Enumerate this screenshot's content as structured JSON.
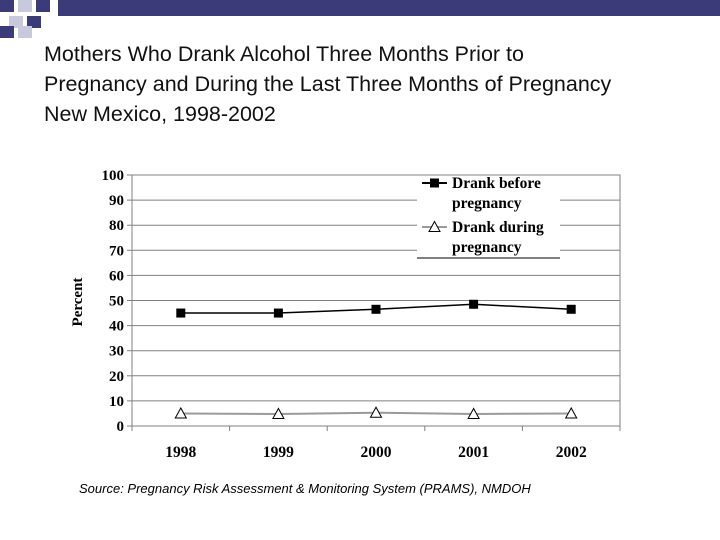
{
  "slide": {
    "title_lines": [
      "Mothers Who Drank Alcohol Three Months Prior to",
      "Pregnancy and During the Last Three Months of Pregnancy",
      "New Mexico, 1998-2002"
    ],
    "source": "Source: Pregnancy Risk Assessment & Monitoring System (PRAMS), NMDOH"
  },
  "colors": {
    "deco_navy": "#3b3b7a",
    "deco_light": "#c9c9dd",
    "series_before": "#000000",
    "series_during": "#9a9a9a"
  },
  "chart_data": {
    "type": "line",
    "title": "",
    "xlabel": "",
    "ylabel": "Percent",
    "categories": [
      "1998",
      "1999",
      "2000",
      "2001",
      "2002"
    ],
    "ylim": [
      0,
      100
    ],
    "yticks": [
      0,
      10,
      20,
      30,
      40,
      50,
      60,
      70,
      80,
      90,
      100
    ],
    "grid": true,
    "legend_position": "top-right",
    "series": [
      {
        "name": "Drank before pregnancy",
        "legend_lines": [
          "Drank before",
          "pregnancy"
        ],
        "marker": "filled-square",
        "values": [
          45,
          45,
          46.5,
          48.5,
          46.5
        ]
      },
      {
        "name": "Drank during pregnancy",
        "legend_lines": [
          "Drank during",
          "pregnancy"
        ],
        "marker": "open-triangle",
        "values": [
          5,
          4.8,
          5.3,
          4.8,
          5
        ]
      }
    ]
  }
}
